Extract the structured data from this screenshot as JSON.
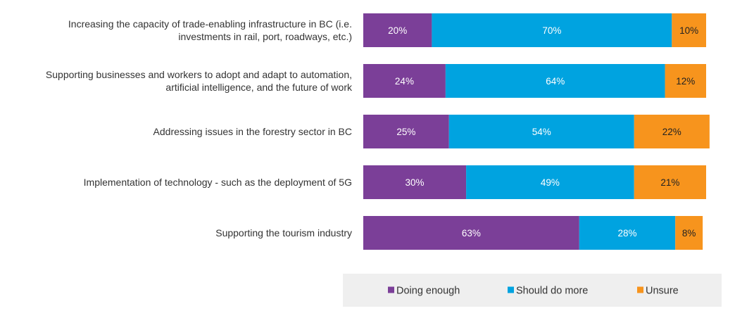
{
  "chart_data": {
    "type": "bar",
    "orientation": "horizontal",
    "stacked": true,
    "value_format": "percent",
    "xlim": [
      0,
      100
    ],
    "grid": false,
    "legend_position": "bottom",
    "categories": [
      [
        "Increasing the capacity of trade-enabling infrastructure in BC (i.e.",
        "investments in rail, port, roadways, etc.)"
      ],
      [
        "Supporting businesses and workers to adopt and adapt to automation,",
        "artificial intelligence, and the future of work"
      ],
      [
        "Addressing issues in the forestry sector in BC"
      ],
      [
        "Implementation of technology - such as the deployment of 5G"
      ],
      [
        "Supporting the tourism industry"
      ]
    ],
    "series": [
      {
        "name": "Doing enough",
        "color": "#7b3f98",
        "label_color": "#ffffff",
        "values": [
          20,
          24,
          25,
          30,
          63
        ]
      },
      {
        "name": "Should do more",
        "color": "#00a3e0",
        "label_color": "#ffffff",
        "values": [
          70,
          64,
          54,
          49,
          28
        ]
      },
      {
        "name": "Unsure",
        "color": "#f7941d",
        "label_color": "#222222",
        "values": [
          10,
          12,
          22,
          21,
          8
        ]
      }
    ]
  },
  "legend_background": "#efefef"
}
